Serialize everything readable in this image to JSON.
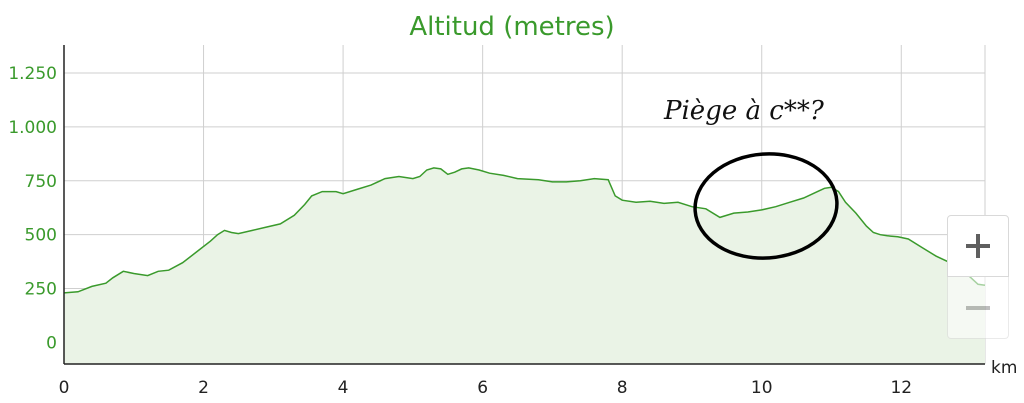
{
  "chart_data": {
    "type": "area",
    "title": "Altitud (metres)",
    "xlabel": "km",
    "ylabel": "",
    "xlim": [
      0,
      13.2
    ],
    "ylim": [
      -100,
      1380
    ],
    "x_ticks": [
      0,
      2,
      4,
      6,
      8,
      10,
      12
    ],
    "x_tick_labels": [
      "0",
      "2",
      "4",
      "6",
      "8",
      "10",
      "12"
    ],
    "y_ticks": [
      0,
      250,
      500,
      750,
      1000,
      1250
    ],
    "y_tick_labels": [
      "0",
      "250",
      "500",
      "750",
      "1.000",
      "1.250"
    ],
    "grid": true,
    "line_color": "#3a9a2c",
    "fill_color": "#eaf3e6",
    "x": [
      0,
      0.2,
      0.4,
      0.6,
      0.7,
      0.85,
      1.0,
      1.2,
      1.35,
      1.5,
      1.7,
      1.9,
      2.1,
      2.2,
      2.3,
      2.4,
      2.5,
      2.7,
      2.9,
      3.1,
      3.3,
      3.45,
      3.55,
      3.7,
      3.9,
      4.0,
      4.2,
      4.4,
      4.6,
      4.8,
      5.0,
      5.1,
      5.2,
      5.3,
      5.4,
      5.5,
      5.6,
      5.7,
      5.8,
      5.95,
      6.1,
      6.3,
      6.5,
      6.8,
      7.0,
      7.2,
      7.4,
      7.6,
      7.8,
      7.9,
      8.0,
      8.2,
      8.4,
      8.6,
      8.8,
      9.0,
      9.2,
      9.4,
      9.6,
      9.8,
      10.0,
      10.2,
      10.4,
      10.6,
      10.8,
      10.9,
      11.0,
      11.1,
      11.2,
      11.35,
      11.5,
      11.6,
      11.7,
      11.8,
      11.95,
      12.1,
      12.3,
      12.5,
      12.7,
      12.85,
      13.0,
      13.1,
      13.2
    ],
    "values": [
      230,
      235,
      260,
      275,
      300,
      330,
      320,
      310,
      330,
      335,
      370,
      420,
      470,
      500,
      520,
      510,
      505,
      520,
      535,
      550,
      590,
      640,
      680,
      700,
      700,
      690,
      710,
      730,
      760,
      770,
      760,
      770,
      800,
      810,
      805,
      780,
      790,
      805,
      810,
      800,
      785,
      775,
      760,
      755,
      745,
      745,
      750,
      760,
      755,
      680,
      660,
      650,
      655,
      645,
      650,
      630,
      620,
      580,
      600,
      605,
      615,
      630,
      650,
      670,
      700,
      715,
      720,
      700,
      650,
      600,
      540,
      510,
      500,
      495,
      490,
      480,
      440,
      400,
      370,
      340,
      300,
      270,
      265
    ],
    "annotations": [
      {
        "text": "Pièje à c**?",
        "marker": "hand-drawn ellipse around 9.2–11.3 km"
      }
    ]
  },
  "controls": {
    "zoom_in_icon": "plus-icon",
    "zoom_out_icon": "minus-icon"
  }
}
